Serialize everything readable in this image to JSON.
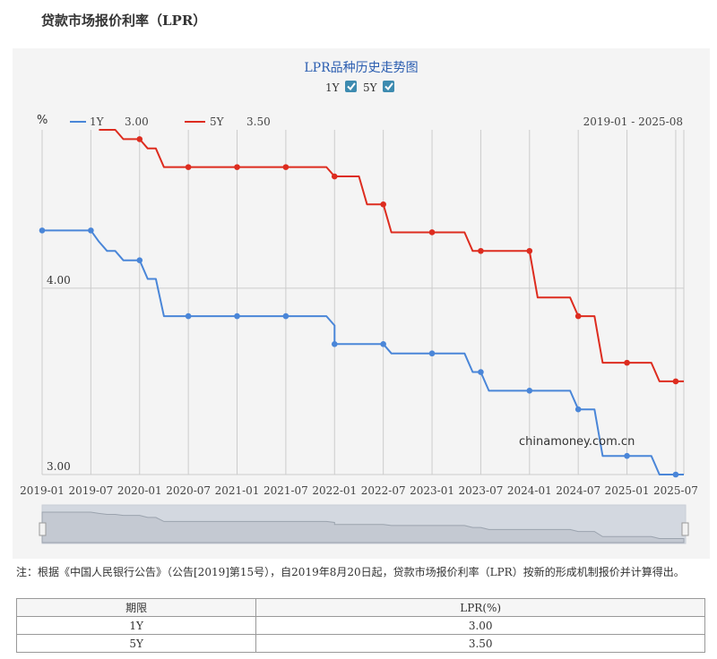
{
  "page": {
    "title": "贷款市场报价利率（LPR）",
    "note": "注：根据《中国人民银行公告》（公告[2019]第15号），自2019年8月20日起，贷款市场报价利率（LPR）按新的形成机制报价并计算得出。"
  },
  "table": {
    "headers": [
      "期限",
      "LPR(%)"
    ],
    "rows": [
      [
        "1Y",
        "3.00"
      ],
      [
        "5Y",
        "3.50"
      ]
    ]
  },
  "colors": {
    "series_1y": "#4a86d8",
    "series_5y": "#dd2c1f",
    "grid": "#cccccc",
    "checkbox": "#3d8bb0"
  },
  "chart_data": {
    "type": "line",
    "title": "LPR品种历史走势图",
    "checkboxes": [
      {
        "label": "1Y",
        "checked": true
      },
      {
        "label": "5Y",
        "checked": true
      }
    ],
    "unit_label": "%",
    "date_range_label": "2019-01 - 2025-08",
    "watermark": "chinamoney.com.cn",
    "ylim": [
      3.0,
      4.85
    ],
    "y_ticks": [
      3.0,
      4.0
    ],
    "y_tick_labels": [
      "3.00",
      "4.00"
    ],
    "xlim": [
      "2019-01",
      "2025-08"
    ],
    "x_ticks": [
      "2019-01",
      "2019-07",
      "2020-01",
      "2020-07",
      "2021-01",
      "2021-07",
      "2022-01",
      "2022-07",
      "2023-01",
      "2023-07",
      "2024-01",
      "2024-07",
      "2025-01",
      "2025-07"
    ],
    "grid": true,
    "legend": {
      "position": "top-left",
      "items": [
        {
          "name": "1Y",
          "value": "3.00"
        },
        {
          "name": "5Y",
          "value": "3.50"
        }
      ]
    },
    "series": [
      {
        "name": "1Y",
        "points": [
          [
            "2019-01",
            4.31
          ],
          [
            "2019-07",
            4.31
          ],
          [
            "2019-08",
            4.25
          ],
          [
            "2019-09",
            4.2
          ],
          [
            "2019-10",
            4.2
          ],
          [
            "2019-11",
            4.15
          ],
          [
            "2020-01",
            4.15
          ],
          [
            "2020-02",
            4.05
          ],
          [
            "2020-03",
            4.05
          ],
          [
            "2020-04",
            3.85
          ],
          [
            "2021-12",
            3.85
          ],
          [
            "2022-01",
            3.8
          ],
          [
            "2022-01",
            3.7
          ],
          [
            "2022-07",
            3.7
          ],
          [
            "2022-08",
            3.65
          ],
          [
            "2023-05",
            3.65
          ],
          [
            "2023-06",
            3.55
          ],
          [
            "2023-07",
            3.55
          ],
          [
            "2023-08",
            3.45
          ],
          [
            "2024-06",
            3.45
          ],
          [
            "2024-07",
            3.35
          ],
          [
            "2024-09",
            3.35
          ],
          [
            "2024-10",
            3.1
          ],
          [
            "2025-04",
            3.1
          ],
          [
            "2025-05",
            3.0
          ],
          [
            "2025-08",
            3.0
          ]
        ],
        "markers": [
          "2019-01",
          "2019-07",
          "2020-01",
          "2020-07",
          "2021-01",
          "2021-07",
          "2022-01",
          "2022-07",
          "2023-01",
          "2023-07",
          "2024-01",
          "2024-07",
          "2025-01",
          "2025-07"
        ]
      },
      {
        "name": "5Y",
        "points": [
          [
            "2019-08",
            4.85
          ],
          [
            "2019-10",
            4.85
          ],
          [
            "2019-11",
            4.8
          ],
          [
            "2020-01",
            4.8
          ],
          [
            "2020-02",
            4.75
          ],
          [
            "2020-03",
            4.75
          ],
          [
            "2020-04",
            4.65
          ],
          [
            "2021-12",
            4.65
          ],
          [
            "2022-01",
            4.6
          ],
          [
            "2022-04",
            4.6
          ],
          [
            "2022-05",
            4.45
          ],
          [
            "2022-07",
            4.45
          ],
          [
            "2022-08",
            4.3
          ],
          [
            "2023-05",
            4.3
          ],
          [
            "2023-06",
            4.2
          ],
          [
            "2024-01",
            4.2
          ],
          [
            "2024-02",
            3.95
          ],
          [
            "2024-06",
            3.95
          ],
          [
            "2024-07",
            3.85
          ],
          [
            "2024-09",
            3.85
          ],
          [
            "2024-10",
            3.6
          ],
          [
            "2025-04",
            3.6
          ],
          [
            "2025-05",
            3.5
          ],
          [
            "2025-08",
            3.5
          ]
        ],
        "markers": [
          "2020-01",
          "2020-07",
          "2021-01",
          "2021-07",
          "2022-01",
          "2022-07",
          "2023-01",
          "2023-07",
          "2024-01",
          "2024-07",
          "2025-01",
          "2025-07"
        ]
      }
    ]
  }
}
